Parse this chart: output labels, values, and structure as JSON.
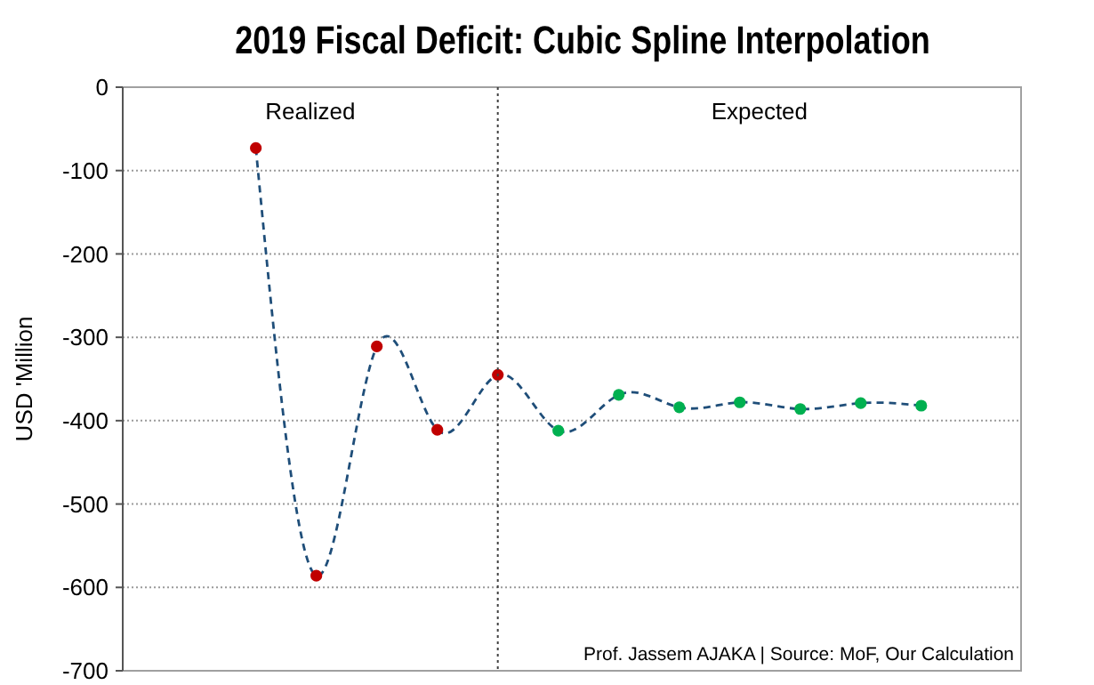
{
  "chart_data": {
    "type": "line",
    "title": "2019 Fiscal Deficit: Cubic Spline Interpolation",
    "ylabel": "USD 'Million",
    "categories": [
      null,
      null,
      null,
      null,
      null,
      null,
      null,
      null,
      null,
      null,
      null,
      null
    ],
    "series": [
      {
        "color": "#1f4e79",
        "values": [
          -73,
          -586,
          -311,
          -411,
          -345,
          -412,
          -369,
          -384,
          -378,
          -386,
          -379,
          -382
        ],
        "colors": [
          "#c00000",
          "#c00000",
          "#c00000",
          "#c00000",
          "#c00000",
          "#00b050",
          "#00b050",
          "#00b050",
          "#00b050",
          "#00b050",
          "#00b050",
          "#00b050"
        ]
      }
    ],
    "ylim": [
      -700,
      0
    ],
    "yticks": [
      -700,
      -600,
      -500,
      -400,
      -300,
      -200,
      -100,
      0
    ],
    "tick_labels": "y",
    "grid": "y",
    "marker": "circle",
    "line_style": "dashed",
    "annotations": [
      "Realized",
      "Expected",
      "Prof. Jassem AJAKA | Source: MoF, Our Calculation"
    ]
  }
}
